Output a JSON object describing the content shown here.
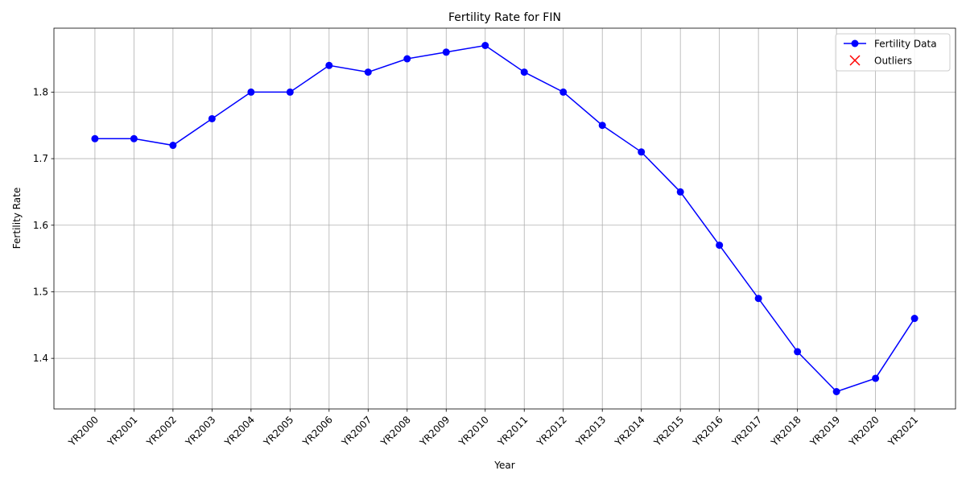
{
  "chart_data": {
    "type": "line",
    "title": "Fertility Rate for FIN",
    "xlabel": "Year",
    "ylabel": "Fertility Rate",
    "categories": [
      "YR2000",
      "YR2001",
      "YR2002",
      "YR2003",
      "YR2004",
      "YR2005",
      "YR2006",
      "YR2007",
      "YR2008",
      "YR2009",
      "YR2010",
      "YR2011",
      "YR2012",
      "YR2013",
      "YR2014",
      "YR2015",
      "YR2016",
      "YR2017",
      "YR2018",
      "YR2019",
      "YR2020",
      "YR2021"
    ],
    "series": [
      {
        "name": "Fertility Data",
        "color": "#0000ff",
        "marker": "o",
        "values": [
          1.73,
          1.73,
          1.72,
          1.76,
          1.8,
          1.8,
          1.84,
          1.83,
          1.85,
          1.86,
          1.87,
          1.83,
          1.8,
          1.75,
          1.71,
          1.65,
          1.57,
          1.49,
          1.41,
          1.35,
          1.37,
          1.46
        ]
      },
      {
        "name": "Outliers",
        "color": "#ff0000",
        "marker": "x",
        "values": [
          null,
          null,
          null,
          null,
          null,
          null,
          null,
          null,
          null,
          null,
          null,
          null,
          null,
          null,
          null,
          null,
          null,
          null,
          null,
          null,
          null,
          null
        ]
      }
    ],
    "ylim": [
      1.324,
      1.896
    ],
    "yticks": [
      1.4,
      1.5,
      1.6,
      1.7,
      1.8
    ],
    "grid": true,
    "legend": "upper right"
  }
}
